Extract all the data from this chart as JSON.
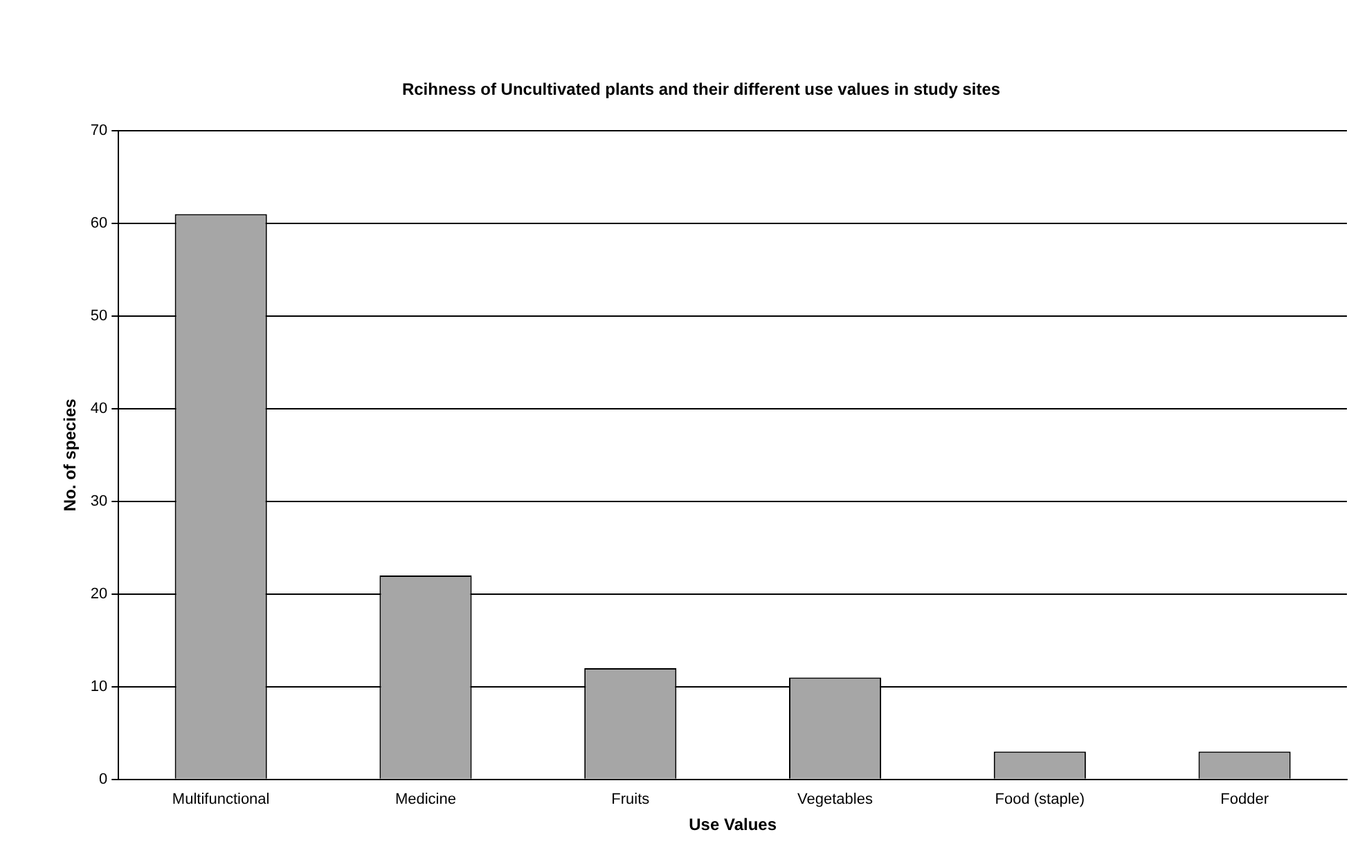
{
  "chart_data": {
    "type": "bar",
    "title": "Rcihness of Uncultivated plants and their different use values in study sites",
    "xlabel": "Use Values",
    "ylabel": "No. of species",
    "categories": [
      "Multifunctional",
      "Medicine",
      "Fruits",
      "Vegetables",
      "Food (staple)",
      "Fodder"
    ],
    "values": [
      61,
      22,
      12,
      11,
      3,
      3
    ],
    "color": "#a6a6a6",
    "ylim": [
      0,
      70
    ],
    "yticks": [
      0,
      10,
      20,
      30,
      40,
      50,
      60,
      70
    ],
    "grid": "y",
    "legend": false
  }
}
